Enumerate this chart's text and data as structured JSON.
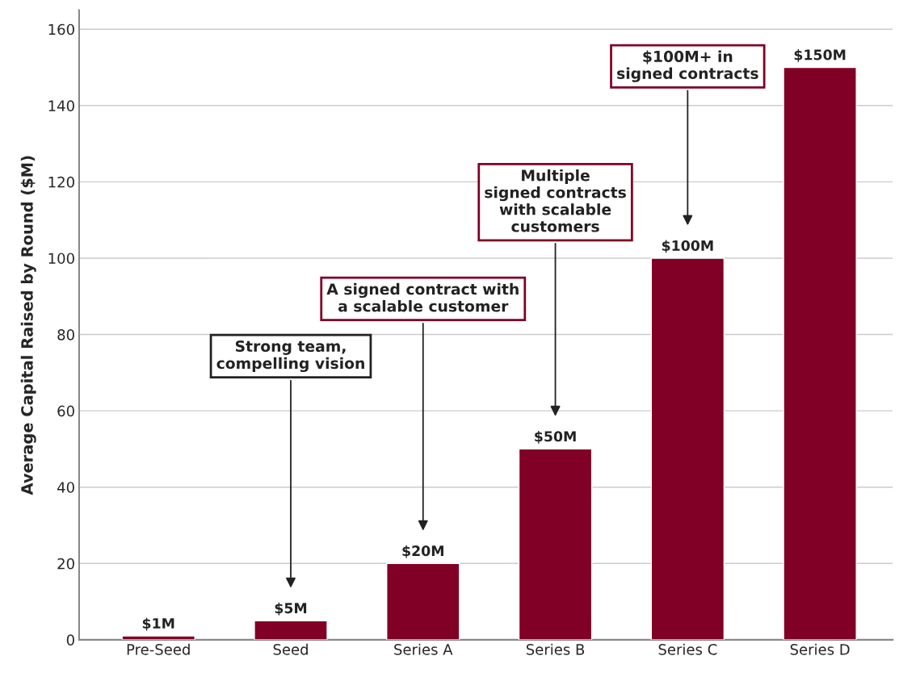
{
  "chart_data": {
    "type": "bar",
    "ylabel": "Average Capital Raised by Round ($M)",
    "categories": [
      "Pre-Seed",
      "Seed",
      "Series A",
      "Series B",
      "Series C",
      "Series D"
    ],
    "values": [
      1,
      5,
      20,
      50,
      100,
      150
    ],
    "value_labels": [
      "$1M",
      "$5M",
      "$20M",
      "$50M",
      "$100M",
      "$150M"
    ],
    "color": "#800026",
    "ylim": [
      0,
      165
    ],
    "yticks": [
      0,
      20,
      40,
      60,
      80,
      100,
      120,
      140,
      160
    ],
    "grid": "y",
    "annotations": [
      "Strong team,\ncompelling vision",
      "A signed contract with\na scalable customer",
      "Multiple\nsigned contracts\nwith scalable\ncustomers",
      "$100M+ in\nsigned contracts"
    ]
  }
}
